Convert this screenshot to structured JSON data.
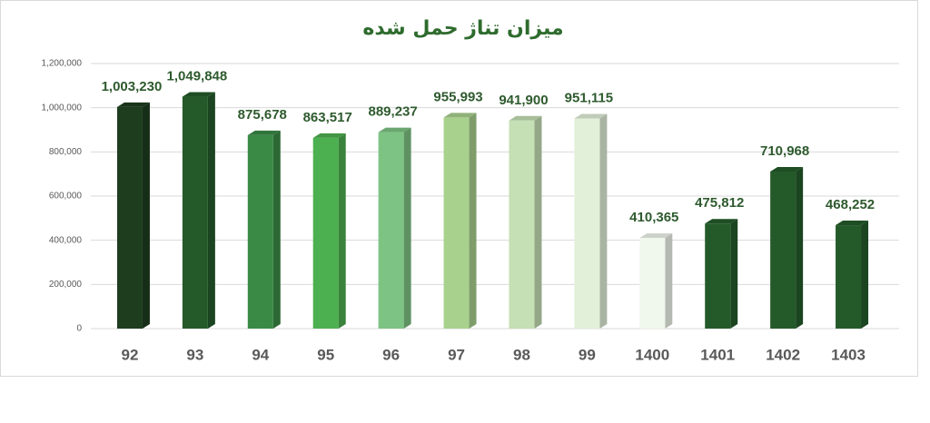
{
  "chart_data": {
    "type": "bar",
    "title": "میزان تناژ حمل شده",
    "categories": [
      "92",
      "93",
      "94",
      "95",
      "96",
      "97",
      "98",
      "99",
      "1400",
      "1401",
      "1402",
      "1403"
    ],
    "values": [
      1003230,
      1049848,
      875678,
      863517,
      889237,
      955993,
      941900,
      951115,
      410365,
      475812,
      710968,
      468252
    ],
    "value_labels": [
      "1,003,230",
      "1,049,848",
      "875,678",
      "863,517",
      "889,237",
      "955,993",
      "941,900",
      "951,115",
      "410,365",
      "475,812",
      "710,968",
      "468,252"
    ],
    "colors": [
      "#1d3d1e",
      "#245a2a",
      "#3a8a45",
      "#4caf50",
      "#7dc383",
      "#a9d18e",
      "#c5e0b4",
      "#e2f0d9",
      "#f0f7ec",
      "#245a2a",
      "#245a2a",
      "#245a2a"
    ],
    "ylim": [
      0,
      1200000
    ],
    "yticks": [
      0,
      {
        "value": 200000,
        "label": "200,000"
      },
      {
        "value": 400000,
        "label": "400,000"
      },
      {
        "value": 600000,
        "label": "600,000"
      },
      {
        "value": 800000,
        "label": "800,000"
      },
      {
        "value": 1000000,
        "label": "1,000,000"
      },
      {
        "value": 1200000,
        "label": "1,200,000"
      }
    ],
    "grid": true
  }
}
